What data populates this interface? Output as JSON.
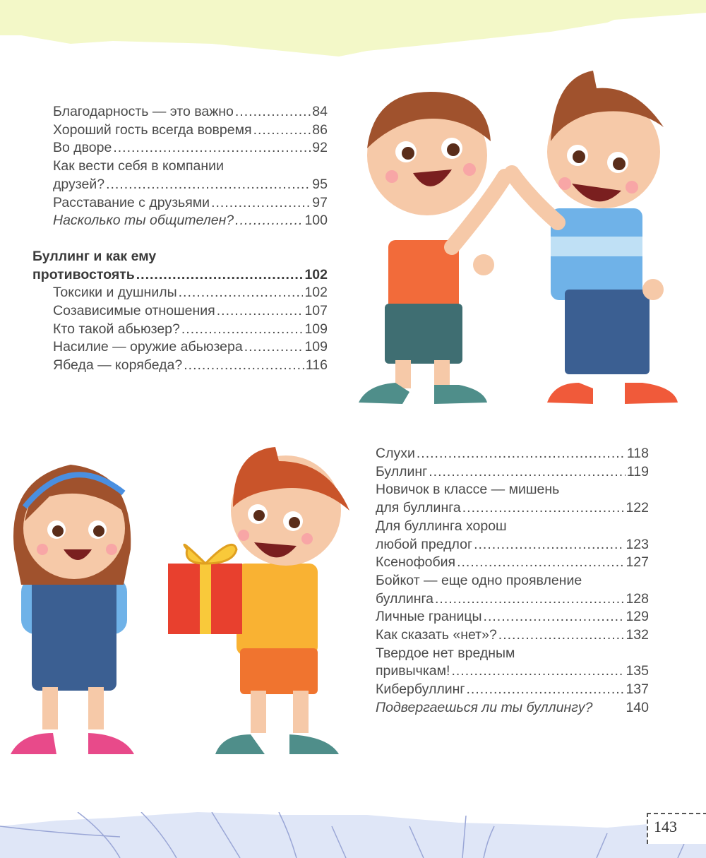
{
  "colors": {
    "top_band": "#f3f8c8",
    "bottom_band": "#dfe6f7",
    "text": "#4a4a4a"
  },
  "toc_left": [
    {
      "lines": [],
      "last": "Благодарность — это важно",
      "page": "84"
    },
    {
      "lines": [],
      "last": "Хороший гость всегда вовремя",
      "page": "86"
    },
    {
      "lines": [],
      "last": "Во дворе",
      "page": "92"
    },
    {
      "lines": [
        "Как вести себя в компании"
      ],
      "last": "друзей?",
      "page": "95"
    },
    {
      "lines": [],
      "last": "Расставание с друзьями",
      "page": "97"
    },
    {
      "lines": [],
      "last": "Насколько ты общителен?",
      "page": "100",
      "italic": true,
      "dotted": true
    },
    {
      "lines": [
        "Буллинг и как ему"
      ],
      "last": "противостоять",
      "page": "102",
      "heading": true
    },
    {
      "lines": [],
      "last": "Токсики и душнилы",
      "page": "102"
    },
    {
      "lines": [],
      "last": "Созависимые отношения",
      "page": "107"
    },
    {
      "lines": [],
      "last": "Кто такой абьюзер?",
      "page": "109"
    },
    {
      "lines": [],
      "last": "Насилие — оружие абьюзера",
      "page": "109"
    },
    {
      "lines": [],
      "last": "Ябеда — корябеда?",
      "page": "116"
    }
  ],
  "toc_right": [
    {
      "lines": [],
      "last": "Слухи",
      "page": "118"
    },
    {
      "lines": [],
      "last": "Буллинг",
      "page": "119"
    },
    {
      "lines": [
        "Новичок в классе — мишень"
      ],
      "last": "для буллинга",
      "page": "122"
    },
    {
      "lines": [
        "Для буллинга хорош"
      ],
      "last": "любой предлог",
      "page": "123"
    },
    {
      "lines": [],
      "last": "Ксенофобия",
      "page": "127"
    },
    {
      "lines": [
        "Бойкот — еще одно проявление"
      ],
      "last": "буллинга",
      "page": "128"
    },
    {
      "lines": [],
      "last": "Личные границы",
      "page": "129"
    },
    {
      "lines": [],
      "last": "Как сказать «нет»?",
      "page": "132"
    },
    {
      "lines": [
        "Твердое нет вредным"
      ],
      "last": "привычкам!",
      "page": "135"
    },
    {
      "lines": [],
      "last": "Кибербуллинг",
      "page": "137"
    },
    {
      "lines": [],
      "last": "Подвергаешься ли ты буллингу?",
      "page": "140",
      "italic": true
    }
  ],
  "footer": {
    "page_number": "143"
  },
  "illustrations": [
    "two-boys-high-five",
    "girl-and-boy-with-gift"
  ]
}
